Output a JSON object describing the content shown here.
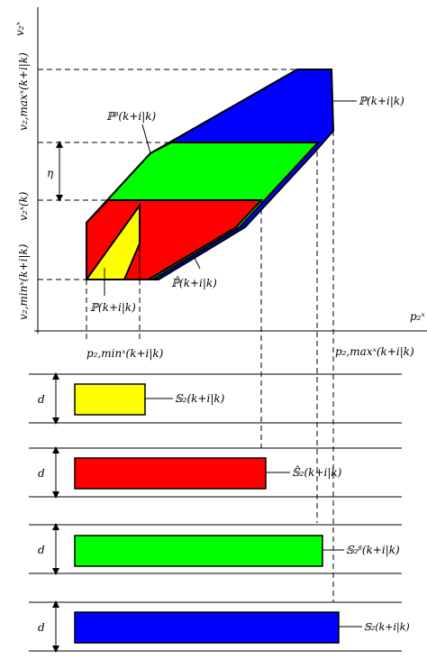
{
  "axes": {
    "x_label": "p₂ˣ",
    "y_label": "v₂ˣ"
  },
  "y_ticks": {
    "v_max": "v₂,maxˣ(k+i|k)",
    "v_k": "v₂ˣ(k)",
    "v_min": "v₂,minˣ(k+i|k)"
  },
  "x_ticks": {
    "p_min": "p₂,minˣ(k+i|k)",
    "p_max": "p₂,maxˣ(k+i|k)"
  },
  "eta_label": "η",
  "d_label": "d",
  "regions": {
    "P": {
      "label": "ℙ(k+i|k)",
      "color": "#0000ff"
    },
    "P_beta": {
      "label": "ℙᵝ(k+i|k)",
      "color": "#00ff00"
    },
    "P_hat": {
      "label": "ℙ̂(k+i|k)",
      "color": "#ff0000"
    },
    "P_small": {
      "label": "ℙ(k+i|k)",
      "color": "#ffff00"
    }
  },
  "bars": [
    {
      "label": "𝕊₂(k+i|k)",
      "color": "#ffff00"
    },
    {
      "label": "𝕊̂₂(k+i|k)",
      "color": "#ff0000"
    },
    {
      "label": "𝕊₂ᵝ(k+i|k)",
      "color": "#00ff00"
    },
    {
      "label": "𝕊₂(k+i|k)",
      "color": "#0000ff"
    }
  ]
}
